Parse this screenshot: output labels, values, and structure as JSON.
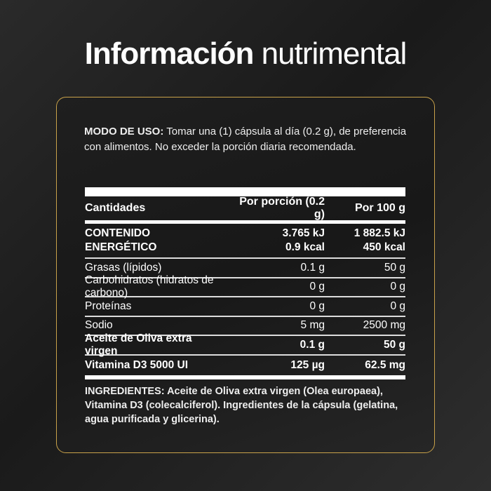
{
  "title": {
    "bold": "Información",
    "light": "nutrimental"
  },
  "usage": {
    "label": "MODO DE USO:",
    "text": " Tomar una (1) cápsula al día (0.2 g), de preferencia con alimentos. No exceder la porción diaria recomendada."
  },
  "table": {
    "headers": [
      "Cantidades",
      "Por porción (0.2 g)",
      "Por 100 g"
    ],
    "energy": {
      "label_1": "CONTENIDO",
      "label_2": "ENERGÉTICO",
      "portion_kj": "3.765 kJ",
      "portion_kcal": "0.9 kcal",
      "per100_kj": "1 882.5 kJ",
      "per100_kcal": "450 kcal"
    },
    "rows": [
      {
        "name": "Grasas (lípidos)",
        "portion": "0.1 g",
        "per100": "50 g"
      },
      {
        "name": "Carbohidratos (hidratos de carbono)",
        "portion": "0 g",
        "per100": "0 g"
      },
      {
        "name": "Proteínas",
        "portion": "0 g",
        "per100": "0 g"
      },
      {
        "name": "Sodio",
        "portion": "5 mg",
        "per100": "2500 mg"
      },
      {
        "name": "Aceite de Oliva extra virgen",
        "portion": "0.1 g",
        "per100": "50 g"
      },
      {
        "name": "Vitamina D3 5000 UI",
        "portion": "125 µg",
        "per100": "62.5 mg"
      }
    ]
  },
  "ingredients": "INGREDIENTES: Aceite de Oliva extra virgen (Olea europaea), Vitamina D3 (colecalciferol). Ingredientes de la cápsula (gelatina, agua purificada y glicerina).",
  "colors": {
    "border": "#c9a24a",
    "background": "#1c1c1c"
  }
}
